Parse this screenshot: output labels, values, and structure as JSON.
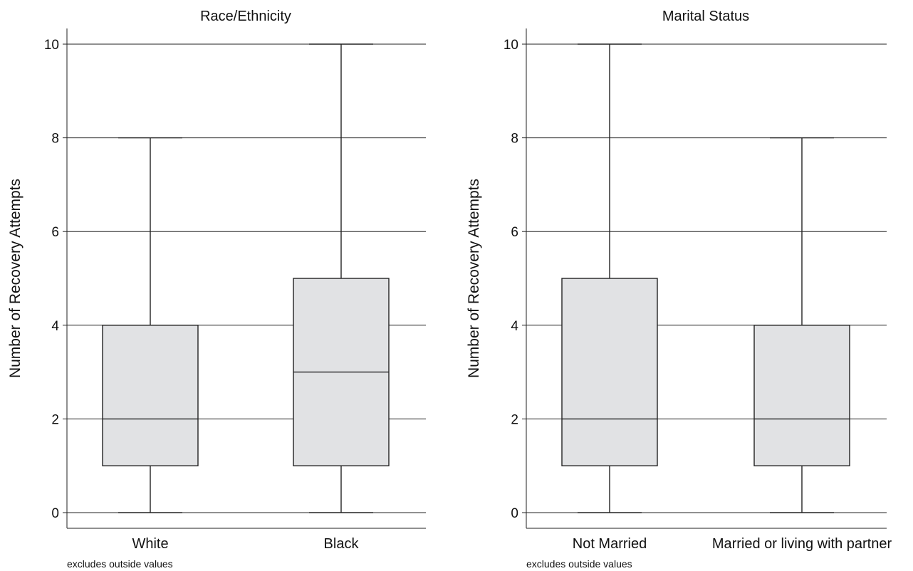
{
  "chart_data": [
    {
      "type": "box",
      "title": "Race/Ethnicity",
      "ylabel": "Number of Recovery Attempts",
      "xlabel": "",
      "ylim": [
        0,
        10
      ],
      "yticks": [
        0,
        2,
        4,
        6,
        8,
        10
      ],
      "grid": true,
      "note": "excludes outside values",
      "categories": [
        "White",
        "Black"
      ],
      "boxes": [
        {
          "category": "White",
          "whisker_low": 0,
          "q1": 1,
          "median": 2,
          "q3": 4,
          "whisker_high": 8
        },
        {
          "category": "Black",
          "whisker_low": 0,
          "q1": 1,
          "median": 3,
          "q3": 5,
          "whisker_high": 10
        }
      ]
    },
    {
      "type": "box",
      "title": "Marital Status",
      "ylabel": "Number of Recovery Attempts",
      "xlabel": "",
      "ylim": [
        0,
        10
      ],
      "yticks": [
        0,
        2,
        4,
        6,
        8,
        10
      ],
      "grid": true,
      "note": "excludes outside values",
      "categories": [
        "Not Married",
        "Married or living with partner"
      ],
      "boxes": [
        {
          "category": "Not Married",
          "whisker_low": 0,
          "q1": 1,
          "median": 2,
          "q3": 5,
          "whisker_high": 10
        },
        {
          "category": "Married or living with partner",
          "whisker_low": 0,
          "q1": 1,
          "median": 2,
          "q3": 4,
          "whisker_high": 8
        }
      ]
    }
  ]
}
